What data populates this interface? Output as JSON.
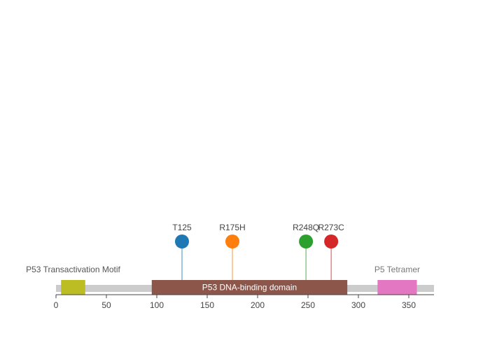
{
  "chart_data": {
    "type": "lollipop",
    "xlim": [
      0,
      375
    ],
    "x_ticks": [
      0,
      50,
      100,
      150,
      200,
      250,
      300,
      350
    ],
    "x_tick_labels": [
      "0",
      "50",
      "100",
      "150",
      "200",
      "250",
      "300",
      "350"
    ],
    "backbone": {
      "start": 0,
      "end": 375,
      "color": "#cccccc"
    },
    "domains": [
      {
        "name": "P53 Transactivation Motif",
        "start": 5,
        "end": 29,
        "color": "#bcbd22",
        "label_color": "#555555"
      },
      {
        "name": "P53 DNA-binding domain",
        "start": 95,
        "end": 289,
        "color": "#8c564b",
        "label_color": "#ffffff"
      },
      {
        "name": "P5 Tetramer",
        "start": 319,
        "end": 358,
        "color": "#e377c2",
        "label_color": "#777777"
      }
    ],
    "mutations": [
      {
        "label": "T125",
        "position": 125,
        "color": "#1f77b4"
      },
      {
        "label": "R175H",
        "position": 175,
        "color": "#ff7f0e"
      },
      {
        "label": "R248Q",
        "position": 248,
        "color": "#2ca02c"
      },
      {
        "label": "R273C",
        "position": 273,
        "color": "#d62728"
      }
    ]
  }
}
